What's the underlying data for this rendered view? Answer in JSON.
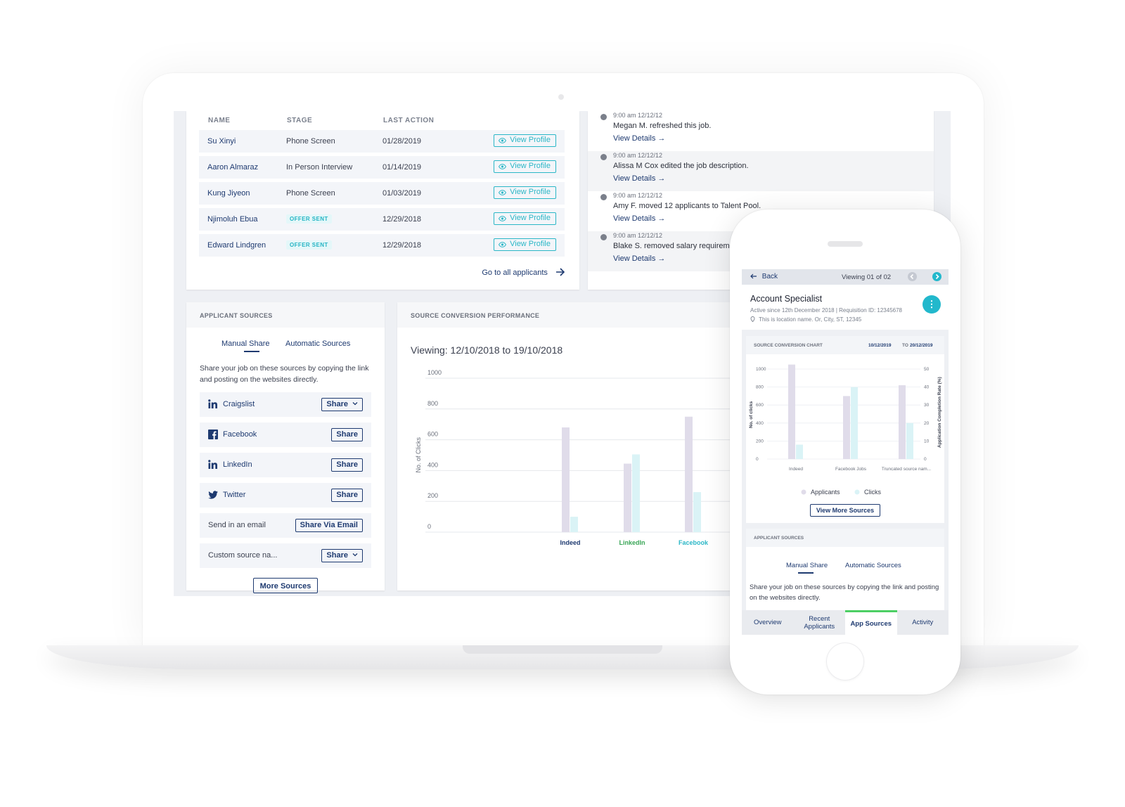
{
  "applicants": {
    "headers": {
      "name": "NAME",
      "stage": "STAGE",
      "last_action": "LAST ACTION"
    },
    "rows": [
      {
        "name": "Su Xinyi",
        "stage": "Phone Screen",
        "badge": "",
        "date": "01/28/2019",
        "action": "View Profile"
      },
      {
        "name": "Aaron Almaraz",
        "stage": "In Person Interview",
        "badge": "",
        "date": "01/14/2019",
        "action": "View Profile"
      },
      {
        "name": "Kung Jiyeon",
        "stage": "Phone Screen",
        "badge": "",
        "date": "01/03/2019",
        "action": "View Profile"
      },
      {
        "name": "Njimoluh Ebua",
        "stage": "",
        "badge": "OFFER SENT",
        "date": "12/29/2018",
        "action": "View Profile"
      },
      {
        "name": "Edward Lindgren",
        "stage": "",
        "badge": "OFFER SENT",
        "date": "12/29/2018",
        "action": "View Profile"
      }
    ],
    "go_to_all": "Go to all applicants"
  },
  "activity": [
    {
      "time": "9:00 am 12/12/12",
      "message": "Megan M. refreshed this job.",
      "link": "View Details →"
    },
    {
      "time": "9:00 am 12/12/12",
      "message": "Alissa M Cox edited the job description.",
      "link": "View Details →"
    },
    {
      "time": "9:00 am 12/12/12",
      "message": "Amy F. moved 12 applicants to Talent Pool.",
      "link": "View Details →"
    },
    {
      "time": "9:00 am 12/12/12",
      "message": "Blake S. removed salary requirement",
      "link": "View Details →"
    }
  ],
  "sources": {
    "title": "APPLICANT SOURCES",
    "tabs": [
      "Manual Share",
      "Automatic Sources"
    ],
    "description": "Share your job on these sources by copying the link and posting on the websites directly.",
    "items": [
      {
        "icon": "linkedin-icon",
        "label": "Craigslist",
        "button": "Share",
        "dropdown": true
      },
      {
        "icon": "facebook-icon",
        "label": "Facebook",
        "button": "Share",
        "dropdown": false
      },
      {
        "icon": "linkedin-icon",
        "label": "LinkedIn",
        "button": "Share",
        "dropdown": false
      },
      {
        "icon": "twitter-icon",
        "label": "Twitter",
        "button": "Share",
        "dropdown": false
      },
      {
        "icon": "",
        "label": "Send in an email",
        "button": "Share Via Email",
        "dropdown": false
      },
      {
        "icon": "",
        "label": "Custom source na...",
        "button": "Share",
        "dropdown": true
      }
    ],
    "more": "More Sources"
  },
  "conversion": {
    "title": "SOURCE CONVERSION PERFORMANCE",
    "viewing": "Viewing: 12/10/2018 to 19/10/2018"
  },
  "chart_data": [
    {
      "type": "bar",
      "title": "",
      "ylabel": "No. of Clicks",
      "ylim": [
        0,
        1000
      ],
      "yticks": [
        0,
        200,
        400,
        600,
        800,
        1000
      ],
      "categories": [
        "Indeed",
        "LinkedIn",
        "Facebook"
      ],
      "category_colors": [
        "#1e3a70",
        "#3aa657",
        "#2bb7c7"
      ],
      "series": [
        {
          "name": "",
          "values": [
            680,
            445,
            750
          ],
          "color": "#e0dcea"
        },
        {
          "name": "",
          "values": [
            100,
            505,
            260
          ],
          "color": "#daf3f6"
        }
      ],
      "grid": true
    },
    {
      "type": "bar",
      "title": "SOURCE CONVERSION CHART",
      "date_from": "10/12/2019",
      "date_sep": "TO",
      "date_to": "20/12/2019",
      "ylabel": "No. of clicks",
      "y2label": "Application Completion Rate (%)",
      "ylim": [
        0,
        1000
      ],
      "yticks": [
        0,
        200,
        400,
        600,
        800,
        1000
      ],
      "y2lim": [
        0,
        50
      ],
      "y2ticks": [
        0,
        10,
        20,
        30,
        40,
        50
      ],
      "categories": [
        "Indeed",
        "Facebook Jobs",
        "Truncated source nam..."
      ],
      "series": [
        {
          "name": "Applicants",
          "values": [
            1060,
            700,
            820
          ],
          "color": "#e0dcea"
        },
        {
          "name": "Clicks",
          "values": [
            160,
            800,
            400
          ],
          "color": "#daf3f6"
        }
      ],
      "legend": "bottom",
      "grid": true
    }
  ],
  "phone": {
    "back": "Back",
    "viewing": "Viewing 01 of 02",
    "job_title": "Account Specialist",
    "meta": "Active since 12th December 2018  |  Requisition ID: 12345678",
    "location": "This is location name. Or, City, ST, 12345",
    "menu_icon": "⋮",
    "legend": [
      "Applicants",
      "Clicks"
    ],
    "view_more": "View More Sources",
    "sources_title": "APPLICANT SOURCES",
    "tabs": [
      "Manual Share",
      "Automatic Sources"
    ],
    "description": "Share your job on these sources by copying the link and posting on the websites directly.",
    "bottom_tabs": [
      "Overview",
      "Recent Applicants",
      "App Sources",
      "Activity"
    ],
    "active_tab": 2
  }
}
